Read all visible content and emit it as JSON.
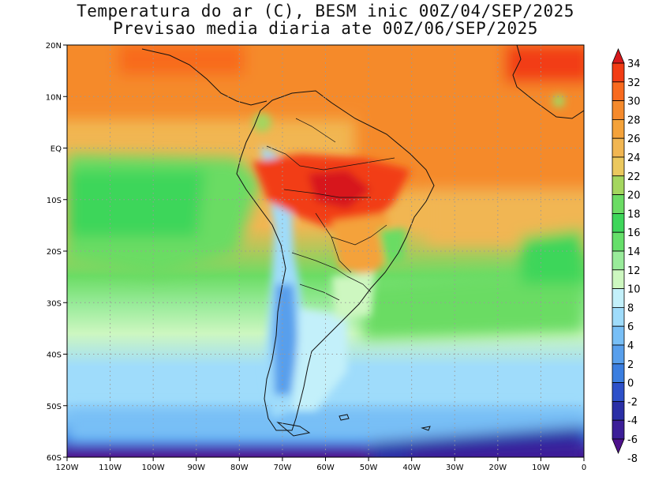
{
  "title_line1": "Temperatura do ar (C), BESM inic 00Z/04/SEP/2025",
  "title_line2": "Previsao media diaria ate 00Z/06/SEP/2025",
  "map": {
    "lon_range": [
      -120,
      0
    ],
    "lat_range": [
      -60,
      20
    ],
    "lat_ticks": [
      {
        "value": 20,
        "label": "20N"
      },
      {
        "value": 10,
        "label": "10N"
      },
      {
        "value": 0,
        "label": "EQ"
      },
      {
        "value": -10,
        "label": "10S"
      },
      {
        "value": -20,
        "label": "20S"
      },
      {
        "value": -30,
        "label": "30S"
      },
      {
        "value": -40,
        "label": "40S"
      },
      {
        "value": -50,
        "label": "50S"
      },
      {
        "value": -60,
        "label": "60S"
      }
    ],
    "lon_ticks": [
      {
        "value": -120,
        "label": "120W"
      },
      {
        "value": -110,
        "label": "110W"
      },
      {
        "value": -100,
        "label": "100W"
      },
      {
        "value": -90,
        "label": "90W"
      },
      {
        "value": -80,
        "label": "80W"
      },
      {
        "value": -70,
        "label": "70W"
      },
      {
        "value": -60,
        "label": "60W"
      },
      {
        "value": -50,
        "label": "50W"
      },
      {
        "value": -40,
        "label": "40W"
      },
      {
        "value": -30,
        "label": "30W"
      },
      {
        "value": -20,
        "label": "20W"
      },
      {
        "value": -10,
        "label": "10W"
      },
      {
        "value": 0,
        "label": "0"
      }
    ],
    "grid": "dotted"
  },
  "colorbar": {
    "labels": [
      "34",
      "32",
      "30",
      "28",
      "26",
      "24",
      "22",
      "20",
      "18",
      "16",
      "14",
      "12",
      "10",
      "8",
      "6",
      "4",
      "2",
      "0",
      "-2",
      "-4",
      "-6",
      "-8"
    ],
    "colors": [
      "#d7191c",
      "#f23c14",
      "#f86a1e",
      "#f58a2c",
      "#f4a23a",
      "#f1b652",
      "#ebc85e",
      "#a4d65e",
      "#6bdc64",
      "#3ed65a",
      "#66df6a",
      "#99eb9a",
      "#cdf7c0",
      "#c3f0fa",
      "#9fdcfb",
      "#78bff6",
      "#589fec",
      "#3b7ee0",
      "#2d50c9",
      "#2a2fa6",
      "#3c1e98",
      "#4e128c"
    ]
  }
}
